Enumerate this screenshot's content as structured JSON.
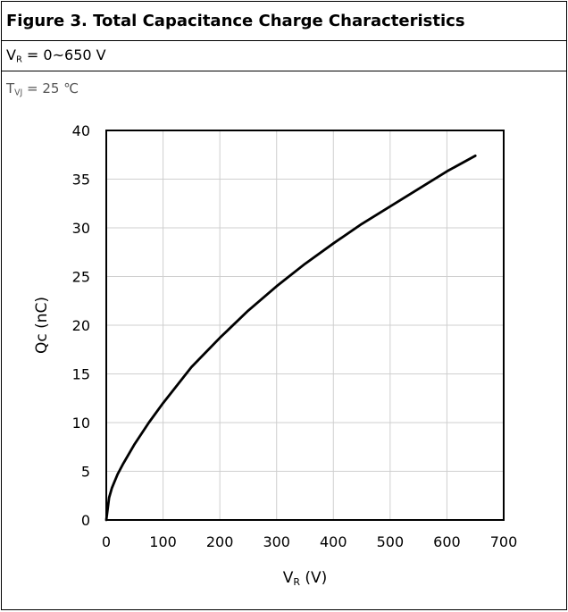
{
  "figure": {
    "title": "Figure 3. Total Capacitance Charge Characteristics",
    "condition": {
      "symbol": "V",
      "subscript": "R",
      "text": " = 0~650 V"
    },
    "temperature": {
      "symbol": "T",
      "subscript": "VJ",
      "text": " = 25 ℃"
    }
  },
  "chart_data": {
    "type": "line",
    "title": "",
    "xlabel": "V",
    "xlabel_subscript": "R",
    "xlabel_unit": " (V)",
    "ylabel": "Qc (nC)",
    "xlim": [
      0,
      700
    ],
    "ylim": [
      0,
      40
    ],
    "xticks": [
      0,
      100,
      200,
      300,
      400,
      500,
      600,
      700
    ],
    "yticks": [
      0,
      5,
      10,
      15,
      20,
      25,
      30,
      35,
      40
    ],
    "grid": true,
    "legend": "none",
    "series": [
      {
        "color": "#000000",
        "x": [
          0,
          5,
          10,
          20,
          30,
          50,
          75,
          100,
          150,
          200,
          250,
          300,
          350,
          400,
          450,
          500,
          550,
          600,
          650
        ],
        "y": [
          0,
          2.3,
          3.3,
          4.7,
          5.8,
          7.8,
          10.0,
          12.0,
          15.7,
          18.7,
          21.5,
          24.0,
          26.3,
          28.4,
          30.4,
          32.2,
          34.0,
          35.8,
          37.4
        ]
      }
    ]
  }
}
